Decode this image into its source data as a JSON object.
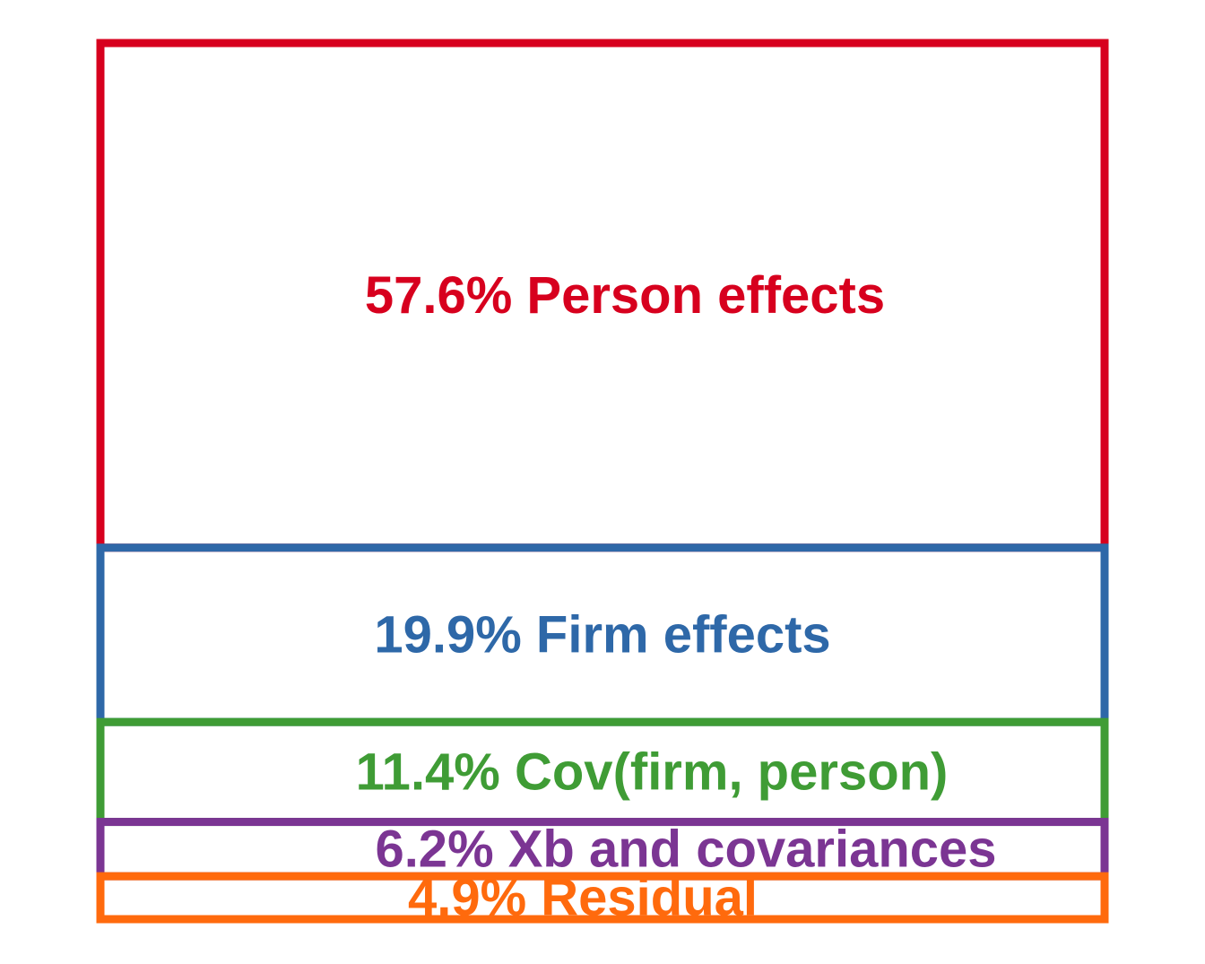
{
  "chart_data": {
    "type": "bar",
    "orientation": "stacked-vertical",
    "categories": [
      "Person effects",
      "Firm effects",
      "Cov(firm, person)",
      "Xb and covariances",
      "Residual"
    ],
    "values": [
      57.6,
      19.9,
      11.4,
      6.2,
      4.9
    ],
    "labels": [
      "57.6% Person effects",
      "19.9% Firm effects",
      "11.4% Cov(firm, person)",
      "6.2% Xb and covariances",
      "4.9% Residual"
    ],
    "colors": [
      "#d7001e",
      "#2e68a8",
      "#3f9c35",
      "#7b3593",
      "#ff6a0d"
    ],
    "title": "",
    "xlabel": "",
    "ylabel": "",
    "grid": false
  }
}
